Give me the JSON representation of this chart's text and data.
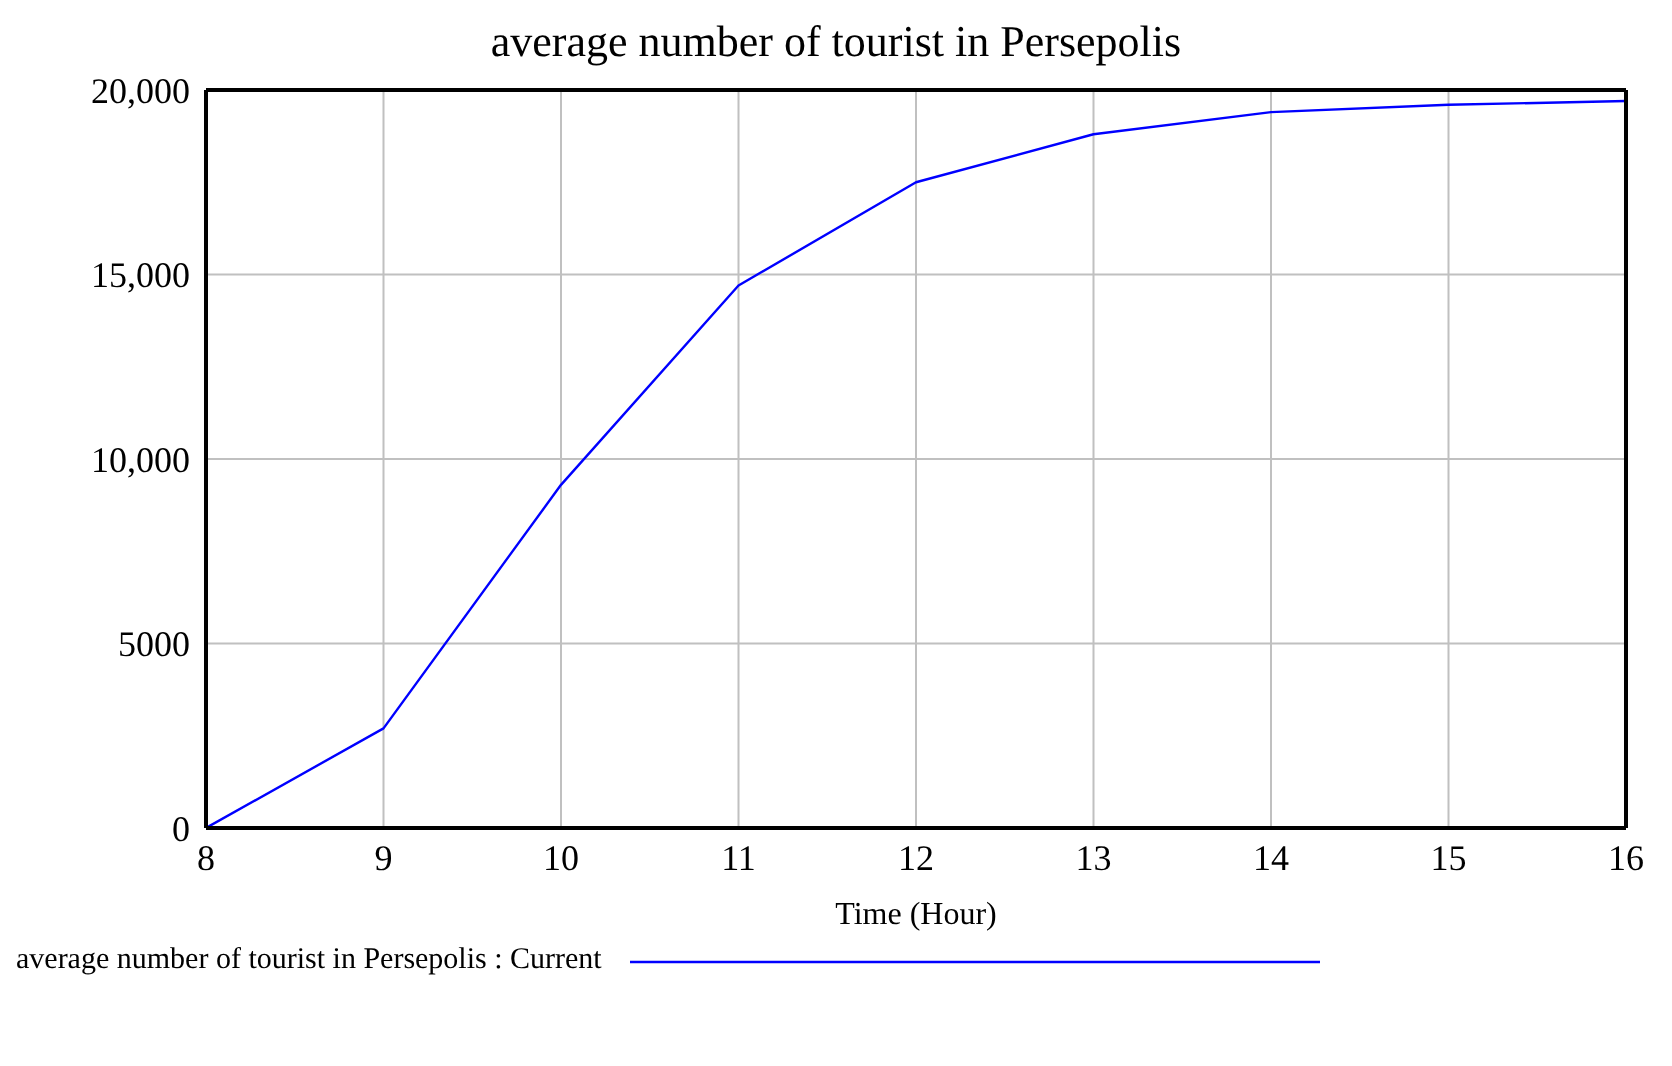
{
  "chart_data": {
    "type": "line",
    "title": "average number of tourist in Persepolis",
    "xlabel": "Time (Hour)",
    "x": [
      8,
      9,
      10,
      11,
      12,
      13,
      14,
      15,
      16
    ],
    "series": [
      {
        "name": "average number of tourist in Persepolis : Current",
        "color": "#0000ff",
        "values": [
          0,
          2700,
          9300,
          14700,
          17500,
          18800,
          19400,
          19600,
          19700
        ]
      }
    ],
    "xlim": [
      8,
      16
    ],
    "xticks": [
      8,
      9,
      10,
      11,
      12,
      13,
      14,
      15,
      16
    ],
    "ylim": [
      0,
      20000
    ],
    "yticks": [
      0,
      {
        "value": 5000,
        "label": "5000"
      },
      {
        "value": 10000,
        "label": "10,000"
      },
      {
        "value": 15000,
        "label": "15,000"
      },
      {
        "value": 20000,
        "label": "20,000"
      }
    ],
    "grid": true,
    "legend": "bottom left",
    "marker": "none",
    "line_style": "solid"
  }
}
